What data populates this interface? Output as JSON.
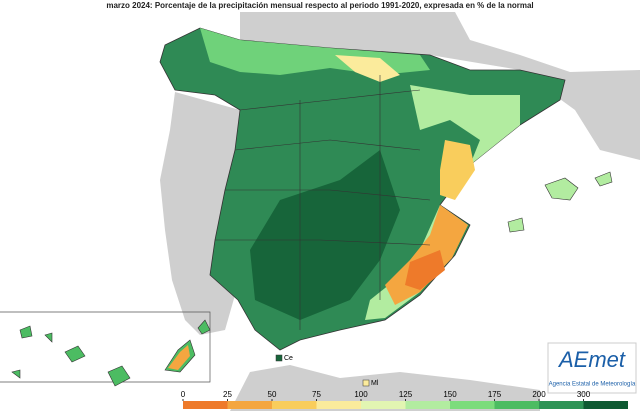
{
  "header": {
    "title": "marzo 2024: Porcentaje de la precipitación mensual respecto al periodo 1991-2020, expresada en % de la normal"
  },
  "places": {
    "ceuta": "Ce",
    "melilla": "Ml"
  },
  "logo": {
    "name": "AEmet",
    "subtitle": "Agencia Estatal de Meteorología"
  },
  "legend": {
    "ticks": [
      0,
      25,
      50,
      75,
      100,
      125,
      150,
      175,
      200,
      300
    ],
    "colors": [
      "#ee7a2a",
      "#f4a640",
      "#f9cd5c",
      "#fbeb9c",
      "#e2f5b2",
      "#b2eca0",
      "#7cdc7c",
      "#4cbc62",
      "#2e9456",
      "#0e5a32"
    ]
  }
}
